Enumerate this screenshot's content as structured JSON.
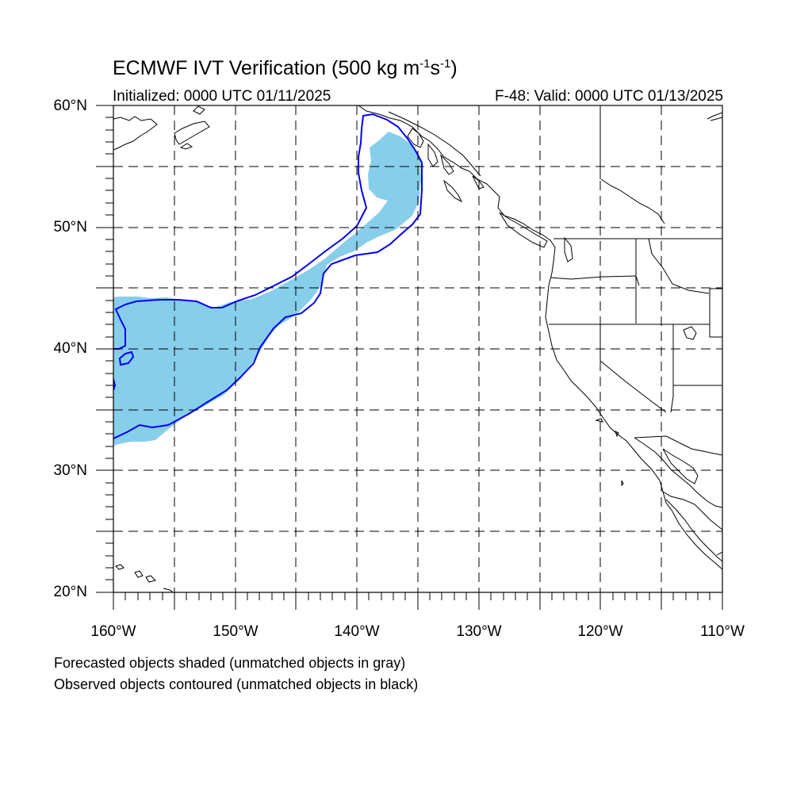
{
  "header": {
    "title_main": "ECMWF IVT Verification (500 kg m",
    "title_sup1": "-1",
    "title_mid": "s",
    "title_sup2": "-1",
    "title_end": ")",
    "initialized": "Initialized: 0000 UTC 01/11/2025",
    "valid": "F-48: Valid: 0000 UTC 01/13/2025"
  },
  "axes": {
    "lat_labels": [
      "60°N",
      "50°N",
      "40°N",
      "30°N",
      "20°N"
    ],
    "lon_labels": [
      "160°W",
      "150°W",
      "140°W",
      "130°W",
      "120°W",
      "110°W"
    ],
    "lat_range": [
      20,
      60
    ],
    "lon_range": [
      -160,
      -110
    ]
  },
  "legend": {
    "line1": "Forecasted objects shaded (unmatched objects in gray)",
    "line2": "Observed objects contoured (unmatched objects in black)"
  },
  "colors": {
    "forecast_fill": "#87ceeb",
    "observed_contour": "#0000ff",
    "coastline": "#000000",
    "grid": "#000000"
  }
}
